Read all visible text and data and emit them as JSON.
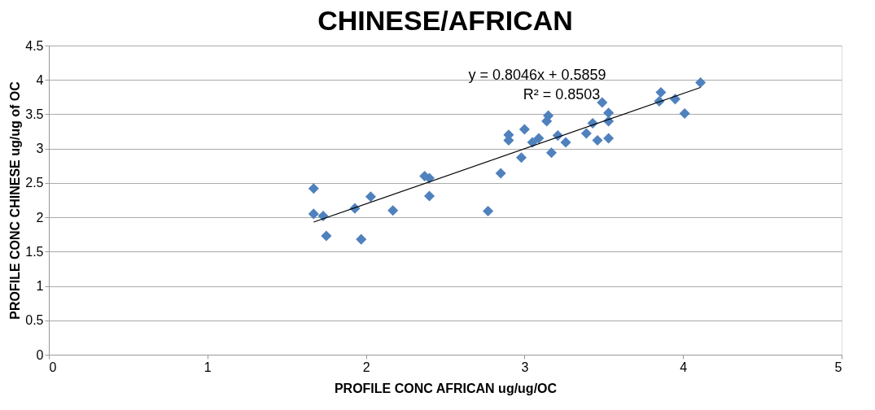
{
  "chart_data": {
    "type": "scatter",
    "title": "CHINESE/AFRICAN",
    "xlabel": "PROFILE CONC AFRICAN ug/ug/OC",
    "ylabel": "PROFILE CONC CHINESE ug/ug of OC",
    "annotations": [
      "y = 0.8046x + 0.5859",
      "R² = 0.8503"
    ],
    "series": [
      {
        "color": "#4f81bd",
        "marker": "diamond",
        "x": [
          1.67,
          1.67,
          1.73,
          1.75,
          1.93,
          1.97,
          2.03,
          2.17,
          2.37,
          2.4,
          2.4,
          2.77,
          2.85,
          2.9,
          2.9,
          2.98,
          3.0,
          3.05,
          3.09,
          3.14,
          3.15,
          3.17,
          3.21,
          3.26,
          3.39,
          3.43,
          3.46,
          3.49,
          3.53,
          3.53,
          3.53,
          3.85,
          3.86,
          3.95,
          4.01,
          4.11
        ],
        "values": [
          2.42,
          2.05,
          2.02,
          1.73,
          2.13,
          1.68,
          2.3,
          2.1,
          2.6,
          2.57,
          2.31,
          2.09,
          2.64,
          3.2,
          3.12,
          2.87,
          3.28,
          3.09,
          3.15,
          3.4,
          3.48,
          2.94,
          3.19,
          3.09,
          3.22,
          3.37,
          3.12,
          3.67,
          3.4,
          3.15,
          3.52,
          3.69,
          3.82,
          3.72,
          3.51,
          3.96
        ]
      },
      {
        "type": "line",
        "color": "#000000",
        "x": [
          1.67,
          4.11
        ],
        "values": [
          1.93,
          3.89
        ]
      }
    ],
    "xlim": [
      0,
      5
    ],
    "xticks": [
      0,
      1,
      2,
      3,
      4,
      5
    ],
    "ylim": [
      0,
      4.5
    ],
    "yticks": [
      0,
      0.5,
      1,
      1.5,
      2,
      2.5,
      3,
      3.5,
      4,
      4.5
    ],
    "grid": "y"
  }
}
